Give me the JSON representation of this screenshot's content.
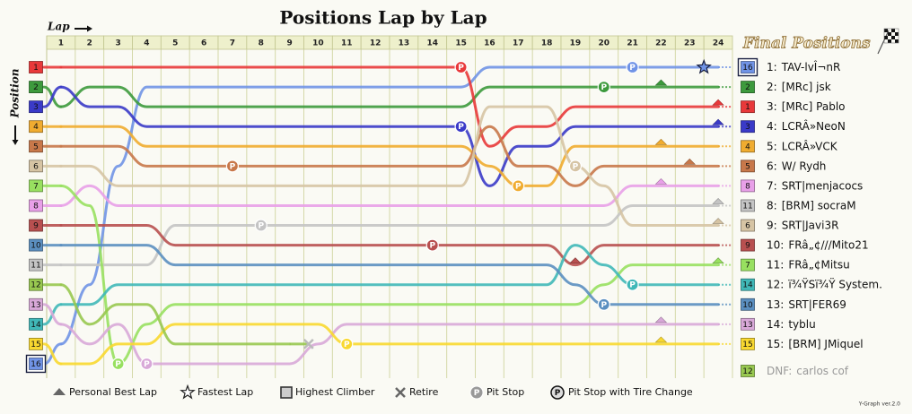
{
  "chart_data": {
    "type": "lap_chart",
    "title": "Positions Lap by Lap",
    "x_label": "Lap",
    "y_label": "Position",
    "final_title": "Final Positions",
    "pit_symbol": "P",
    "x": [
      1,
      2,
      3,
      4,
      5,
      6,
      7,
      8,
      9,
      10,
      11,
      12,
      13,
      14,
      15,
      16,
      17,
      18,
      19,
      20,
      21,
      22,
      23,
      24
    ],
    "xlim": [
      0.5,
      24.5
    ],
    "xticks": [
      1,
      2,
      3,
      4,
      5,
      6,
      7,
      8,
      9,
      10,
      11,
      12,
      13,
      14,
      15,
      16,
      17,
      18,
      19,
      20,
      21,
      22,
      23,
      24
    ],
    "ylim": [
      0.5,
      16.5
    ],
    "legend": {
      "personal_best": "Personal Best Lap",
      "fastest": "Fastest Lap",
      "highest_climber": "Highest Climber",
      "retire": "Retire",
      "pit": "Pit Stop",
      "pit_tire": "Pit Stop with Tire Change"
    },
    "footer": "Y-Graph ver.2.0",
    "series": [
      {
        "name": "TAV-lvÎ¬nR",
        "final_label": "1:",
        "start": 16,
        "color": "#7093e6",
        "highlight": true,
        "pits": [
          21
        ],
        "fastest": 23,
        "values": [
          15,
          12,
          6,
          2,
          2,
          2,
          2,
          2,
          2,
          2,
          2,
          2,
          2,
          2,
          2,
          1,
          1,
          1,
          1,
          1,
          1,
          1,
          1,
          1
        ]
      },
      {
        "name": "[MRc] jsk",
        "final_label": "2:",
        "start": 2,
        "color": "#3d9a3d",
        "pits": [
          20
        ],
        "personal_best": 22,
        "values": [
          3,
          2,
          2,
          3,
          3,
          3,
          3,
          3,
          3,
          3,
          3,
          3,
          3,
          3,
          3,
          2,
          2,
          2,
          2,
          2,
          2,
          2,
          2,
          2
        ]
      },
      {
        "name": "[MRc] Pablo",
        "final_label": "3:",
        "start": 1,
        "color": "#e8393a",
        "pits": [
          15
        ],
        "personal_best": 24,
        "values": [
          1,
          1,
          1,
          1,
          1,
          1,
          1,
          1,
          1,
          1,
          1,
          1,
          1,
          1,
          1,
          5,
          4,
          4,
          3,
          3,
          3,
          3,
          3,
          3
        ]
      },
      {
        "name": "LCRÂ»NeoN",
        "final_label": "4:",
        "start": 3,
        "color": "#3a3ac8",
        "pits": [
          15
        ],
        "personal_best": 24,
        "values": [
          2,
          3,
          3,
          4,
          4,
          4,
          4,
          4,
          4,
          4,
          4,
          4,
          4,
          4,
          4,
          7,
          5,
          5,
          4,
          4,
          4,
          4,
          4,
          4
        ]
      },
      {
        "name": "LCRÂ»VCK",
        "final_label": "5:",
        "start": 4,
        "color": "#f0ac30",
        "pits": [
          17
        ],
        "personal_best": 22,
        "values": [
          4,
          4,
          4,
          5,
          5,
          5,
          5,
          5,
          5,
          5,
          5,
          5,
          5,
          5,
          5,
          6,
          7,
          7,
          5,
          5,
          5,
          5,
          5,
          5
        ]
      },
      {
        "name": "W/ Rydh",
        "final_label": "6:",
        "start": 5,
        "color": "#c8784a",
        "pits": [
          7
        ],
        "personal_best": 23,
        "values": [
          5,
          5,
          5,
          6,
          6,
          6,
          6,
          6,
          6,
          6,
          6,
          6,
          6,
          6,
          6,
          4,
          6,
          6,
          7,
          6,
          6,
          6,
          6,
          6
        ]
      },
      {
        "name": "SRT|menjacocs",
        "final_label": "7:",
        "start": 8,
        "color": "#e8a0e8",
        "personal_best": 22,
        "values": [
          8,
          7,
          8,
          8,
          8,
          8,
          8,
          8,
          8,
          8,
          8,
          8,
          8,
          8,
          8,
          8,
          8,
          8,
          8,
          8,
          7,
          7,
          7,
          7
        ]
      },
      {
        "name": "[BRM] socraM",
        "final_label": "8:",
        "start": 11,
        "color": "#c4c4c4",
        "pits": [
          8
        ],
        "personal_best": 24,
        "values": [
          11,
          11,
          11,
          11,
          9,
          9,
          9,
          9,
          9,
          9,
          9,
          9,
          9,
          9,
          9,
          9,
          9,
          9,
          9,
          9,
          8,
          8,
          8,
          8
        ]
      },
      {
        "name": "SRT|Javi3R",
        "final_label": "9:",
        "start": 6,
        "color": "#d6c4a4",
        "pits": [
          19
        ],
        "personal_best": 24,
        "values": [
          6,
          6,
          7,
          7,
          7,
          7,
          7,
          7,
          7,
          7,
          7,
          7,
          7,
          7,
          7,
          3,
          3,
          3,
          6,
          7,
          9,
          9,
          9,
          9
        ]
      },
      {
        "name": "FRâ„¢///Mito21",
        "final_label": "10:",
        "start": 9,
        "color": "#b85050",
        "pits": [
          14
        ],
        "personal_best": 19,
        "values": [
          9,
          9,
          9,
          9,
          10,
          10,
          10,
          10,
          10,
          10,
          10,
          10,
          10,
          10,
          10,
          10,
          10,
          10,
          11,
          10,
          10,
          10,
          10,
          10
        ]
      },
      {
        "name": "FRâ„¢Mitsu",
        "final_label": "11:",
        "start": 7,
        "color": "#98e060",
        "pits": [
          3
        ],
        "personal_best": 24,
        "values": [
          7,
          8,
          16,
          14,
          13,
          13,
          13,
          13,
          13,
          13,
          13,
          13,
          13,
          13,
          13,
          13,
          13,
          13,
          13,
          12,
          11,
          11,
          11,
          11
        ]
      },
      {
        "name": "ï¾ŸSï¾Ÿ System.",
        "final_label": "12:",
        "start": 14,
        "color": "#40b8b8",
        "pits": [
          21
        ],
        "values": [
          13,
          13,
          12,
          12,
          12,
          12,
          12,
          12,
          12,
          12,
          12,
          12,
          12,
          12,
          12,
          12,
          12,
          12,
          10,
          11,
          12,
          12,
          12,
          12
        ]
      },
      {
        "name": "SRT|FER69",
        "final_label": "13:",
        "start": 10,
        "color": "#5b8fc0",
        "pits": [
          20
        ],
        "values": [
          10,
          10,
          10,
          10,
          11,
          11,
          11,
          11,
          11,
          11,
          11,
          11,
          11,
          11,
          11,
          11,
          11,
          11,
          12,
          13,
          13,
          13,
          13,
          13
        ]
      },
      {
        "name": "tyblu",
        "final_label": "14:",
        "start": 13,
        "color": "#d8a8d8",
        "pits": [
          4
        ],
        "personal_best": 22,
        "values": [
          14,
          15,
          14,
          16,
          16,
          16,
          16,
          16,
          16,
          15,
          14,
          14,
          14,
          14,
          14,
          14,
          14,
          14,
          14,
          14,
          14,
          14,
          14,
          14
        ]
      },
      {
        "name": "[BRM] JMiquel",
        "final_label": "15:",
        "start": 15,
        "color": "#f8d830",
        "pits": [
          11
        ],
        "personal_best": 22,
        "values": [
          16,
          16,
          15,
          15,
          14,
          14,
          14,
          14,
          14,
          14,
          15,
          15,
          15,
          15,
          15,
          15,
          15,
          15,
          15,
          15,
          15,
          15,
          15,
          15
        ]
      },
      {
        "name": "carlos cof",
        "final_label": "DNF:",
        "start": 12,
        "color": "#98c850",
        "retired": 10,
        "values": [
          12,
          14,
          13,
          13,
          15,
          15,
          15,
          15,
          15,
          null,
          null,
          null,
          null,
          null,
          null,
          null,
          null,
          null,
          null,
          null,
          null,
          null,
          null,
          null
        ]
      }
    ]
  }
}
